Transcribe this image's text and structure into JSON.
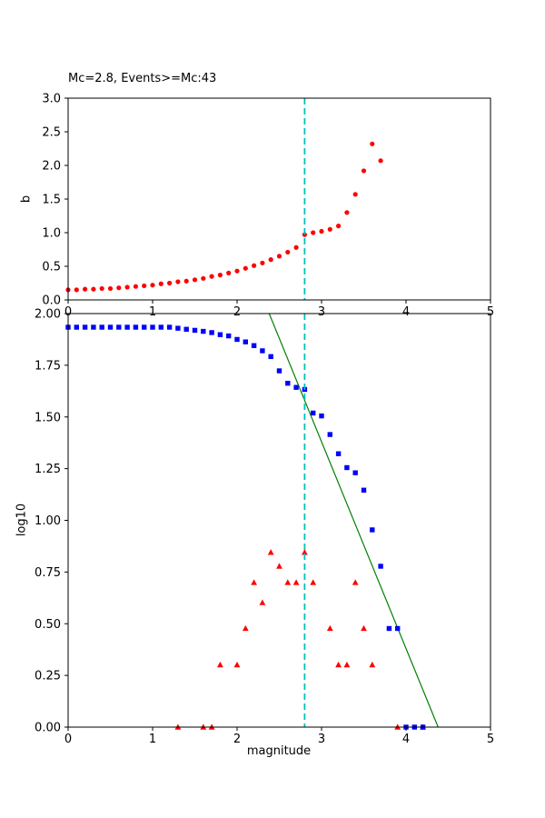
{
  "figure": {
    "background": "#ffffff"
  },
  "chart_data": [
    {
      "type": "scatter",
      "name": "b-value-curve",
      "title": "Mc=2.8, Events>=Mc:43",
      "xlabel": "",
      "ylabel": "b",
      "xlim": [
        0,
        5
      ],
      "ylim": [
        0.0,
        3.0
      ],
      "xticks": [
        0,
        1,
        2,
        3,
        4,
        5
      ],
      "xtick_labels": [
        "0",
        "1",
        "2",
        "3",
        "4",
        "5"
      ],
      "yticks": [
        0.0,
        0.5,
        1.0,
        1.5,
        2.0,
        2.5,
        3.0
      ],
      "ytick_labels": [
        "0.0",
        "0.5",
        "1.0",
        "1.5",
        "2.0",
        "2.5",
        "3.0"
      ],
      "grid": false,
      "vline": {
        "name": "mc-cutoff-line-top",
        "x": 2.8,
        "color": "#00bfbf",
        "style": "dashed"
      },
      "series": [
        {
          "name": "b-value-points",
          "marker": "circle",
          "color": "#ff0000",
          "x": [
            0.0,
            0.1,
            0.2,
            0.3,
            0.4,
            0.5,
            0.6,
            0.7,
            0.8,
            0.9,
            1.0,
            1.1,
            1.2,
            1.3,
            1.4,
            1.5,
            1.6,
            1.7,
            1.8,
            1.9,
            2.0,
            2.1,
            2.2,
            2.3,
            2.4,
            2.5,
            2.6,
            2.7,
            2.8,
            2.9,
            3.0,
            3.1,
            3.2,
            3.3,
            3.4,
            3.5,
            3.6,
            3.7
          ],
          "y": [
            0.15,
            0.15,
            0.16,
            0.16,
            0.17,
            0.17,
            0.18,
            0.19,
            0.2,
            0.21,
            0.22,
            0.24,
            0.25,
            0.27,
            0.28,
            0.3,
            0.32,
            0.35,
            0.37,
            0.4,
            0.43,
            0.47,
            0.51,
            0.55,
            0.6,
            0.65,
            0.71,
            0.78,
            0.97,
            1.0,
            1.02,
            1.05,
            1.1,
            1.3,
            1.57,
            1.92,
            2.32,
            2.07
          ]
        }
      ]
    },
    {
      "type": "scatter",
      "name": "frequency-magnitude",
      "title": "",
      "xlabel": "magnitude",
      "ylabel": "log10",
      "xlim": [
        0,
        5
      ],
      "ylim": [
        0.0,
        2.0
      ],
      "xticks": [
        0,
        1,
        2,
        3,
        4,
        5
      ],
      "xtick_labels": [
        "0",
        "1",
        "2",
        "3",
        "4",
        "5"
      ],
      "yticks": [
        0.0,
        0.25,
        0.5,
        0.75,
        1.0,
        1.25,
        1.5,
        1.75,
        2.0
      ],
      "ytick_labels": [
        "0.00",
        "0.25",
        "0.50",
        "0.75",
        "1.00",
        "1.25",
        "1.50",
        "1.75",
        "2.00"
      ],
      "grid": false,
      "vline": {
        "name": "mc-cutoff-line-bottom",
        "x": 2.8,
        "color": "#00bfbf",
        "style": "dashed"
      },
      "series": [
        {
          "name": "gr-fit-line",
          "marker": "line",
          "color": "#008000",
          "x": [
            2.3,
            4.38
          ],
          "y": [
            2.08,
            0.0
          ]
        },
        {
          "name": "bin-count-points",
          "marker": "triangle",
          "color": "#ff0000",
          "x": [
            1.3,
            1.6,
            1.7,
            1.8,
            2.0,
            2.1,
            2.2,
            2.3,
            2.4,
            2.5,
            2.6,
            2.7,
            2.8,
            2.9,
            3.1,
            3.2,
            3.3,
            3.4,
            3.5,
            3.6,
            3.9,
            4.2
          ],
          "y": [
            0,
            0,
            0,
            0.301,
            0.301,
            0.477,
            0.699,
            0.602,
            0.845,
            0.778,
            0.699,
            0.699,
            0.845,
            0.699,
            0.477,
            0.301,
            0.301,
            0.699,
            0.477,
            0.301,
            0,
            0
          ]
        },
        {
          "name": "cumulative-count-points",
          "marker": "square",
          "color": "#0000ff",
          "x": [
            0.0,
            0.1,
            0.2,
            0.3,
            0.4,
            0.5,
            0.6,
            0.7,
            0.8,
            0.9,
            1.0,
            1.1,
            1.2,
            1.3,
            1.4,
            1.5,
            1.6,
            1.7,
            1.8,
            1.9,
            2.0,
            2.1,
            2.2,
            2.3,
            2.4,
            2.5,
            2.6,
            2.7,
            2.8,
            2.9,
            3.0,
            3.1,
            3.2,
            3.3,
            3.4,
            3.5,
            3.6,
            3.7,
            3.8,
            3.9,
            4.0,
            4.1,
            4.2
          ],
          "y": [
            1.934,
            1.934,
            1.934,
            1.934,
            1.934,
            1.934,
            1.934,
            1.934,
            1.934,
            1.934,
            1.934,
            1.934,
            1.934,
            1.929,
            1.924,
            1.919,
            1.914,
            1.908,
            1.898,
            1.892,
            1.875,
            1.863,
            1.845,
            1.82,
            1.792,
            1.723,
            1.663,
            1.643,
            1.633,
            1.519,
            1.505,
            1.415,
            1.322,
            1.255,
            1.23,
            1.146,
            0.954,
            0.778,
            0.477,
            0.477,
            0.0,
            0.0,
            0.0
          ]
        }
      ]
    }
  ]
}
